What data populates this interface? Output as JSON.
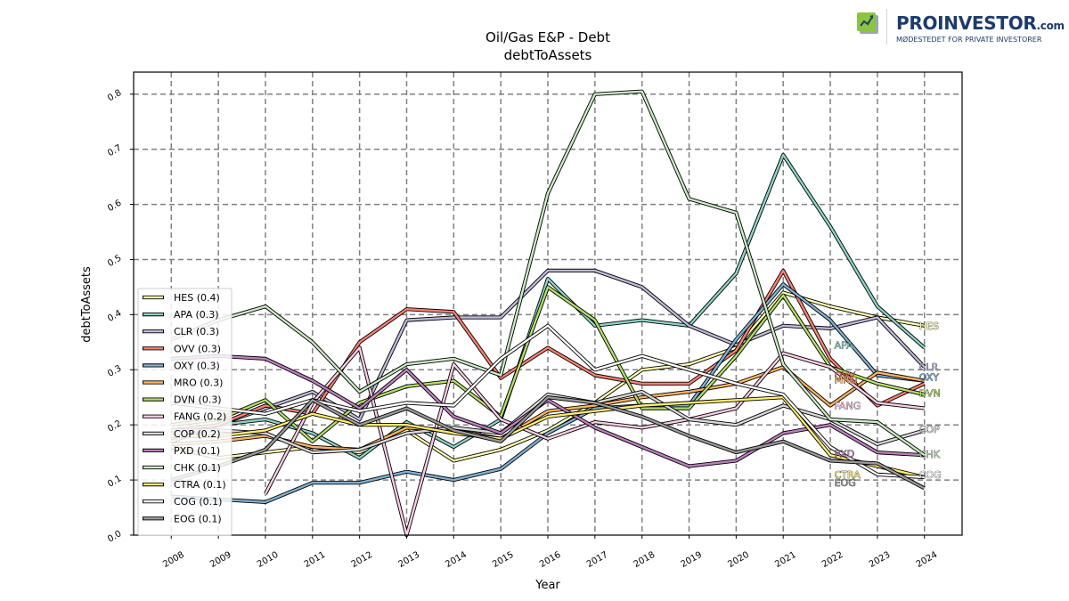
{
  "brand": {
    "name": "PROINVESTOR",
    "suffix": ".com",
    "tagline": "MØDESTEDET FOR PRIVATE INVESTORER"
  },
  "chart_data": {
    "type": "line",
    "title": "Oil/Gas E&P - Debt",
    "subtitle": "debtToAssets",
    "xlabel": "Year",
    "ylabel": "debtToAssets",
    "x": [
      2008,
      2009,
      2010,
      2011,
      2012,
      2013,
      2014,
      2015,
      2016,
      2017,
      2018,
      2019,
      2020,
      2021,
      2022,
      2023,
      2024
    ],
    "xlim": [
      2007.2,
      2024.8
    ],
    "ylim": [
      0.0,
      0.84
    ],
    "yticks": [
      "0.0",
      "0.1",
      "0.2",
      "0.3",
      "0.4",
      "0.5",
      "0.6",
      "0.7",
      "0.8"
    ],
    "grid": true,
    "legend_position": "lower-left",
    "series": [
      {
        "name": "HES (0.4)",
        "label": "HES",
        "color": "#ffffb3",
        "values": [
          0.16,
          0.14,
          0.15,
          0.16,
          0.15,
          0.19,
          0.135,
          0.155,
          0.19,
          0.24,
          0.3,
          0.31,
          0.34,
          0.44,
          0.415,
          0.395,
          0.38
        ]
      },
      {
        "name": "APA (0.3)",
        "label": "APA",
        "color": "#8dd3c7",
        "values": [
          0.17,
          0.2,
          0.21,
          0.185,
          0.14,
          0.205,
          0.16,
          0.21,
          0.465,
          0.38,
          0.39,
          0.38,
          0.475,
          0.69,
          0.56,
          0.415,
          0.34
        ]
      },
      {
        "name": "CLR (0.3)",
        "label": "CLR",
        "color": "#bebada",
        "values": [
          0.17,
          0.2,
          0.23,
          0.26,
          0.21,
          0.39,
          0.395,
          0.395,
          0.48,
          0.48,
          0.45,
          0.38,
          0.345,
          0.38,
          0.375,
          0.395,
          0.305
        ]
      },
      {
        "name": "OVV (0.3)",
        "label": "OVV",
        "color": "#fb8072",
        "values": [
          0.19,
          0.2,
          0.235,
          0.22,
          0.35,
          0.41,
          0.405,
          0.285,
          0.34,
          0.29,
          0.275,
          0.275,
          0.335,
          0.48,
          0.32,
          0.235,
          0.275
        ]
      },
      {
        "name": "OXY (0.3)",
        "label": "OXY",
        "color": "#80b1d3",
        "values": [
          0.07,
          0.065,
          0.06,
          0.095,
          0.095,
          0.115,
          0.1,
          0.12,
          0.185,
          0.23,
          0.235,
          0.235,
          0.355,
          0.455,
          0.39,
          0.29,
          0.28
        ]
      },
      {
        "name": "MRO (0.3)",
        "label": "MRO",
        "color": "#fdb462",
        "values": [
          0.165,
          0.17,
          0.18,
          0.16,
          0.155,
          0.195,
          0.19,
          0.175,
          0.225,
          0.235,
          0.25,
          0.26,
          0.275,
          0.305,
          0.235,
          0.295,
          0.28
        ]
      },
      {
        "name": "DVN (0.3)",
        "label": "DVN",
        "color": "#b3de69",
        "values": [
          0.2,
          0.21,
          0.245,
          0.17,
          0.24,
          0.27,
          0.28,
          0.215,
          0.45,
          0.39,
          0.23,
          0.23,
          0.325,
          0.435,
          0.305,
          0.275,
          0.255
        ]
      },
      {
        "name": "FANG (0.2)",
        "label": "FANG",
        "color": "#fccde5",
        "values": [
          null,
          null,
          0.075,
          0.24,
          0.34,
          0.0,
          0.31,
          0.21,
          0.175,
          0.205,
          0.195,
          0.21,
          0.23,
          0.33,
          0.305,
          0.24,
          0.23
        ]
      },
      {
        "name": "COP (0.2)",
        "label": "COP",
        "color": "#d9d9d9",
        "values": [
          0.19,
          0.19,
          0.185,
          0.15,
          0.155,
          0.185,
          0.195,
          0.185,
          0.255,
          0.24,
          0.26,
          0.21,
          0.2,
          0.235,
          0.21,
          0.165,
          0.19
        ]
      },
      {
        "name": "PXD (0.1)",
        "label": "PXD",
        "color": "#bc80bd",
        "values": [
          0.32,
          0.325,
          0.32,
          0.28,
          0.23,
          0.3,
          0.215,
          0.185,
          0.245,
          0.195,
          0.16,
          0.125,
          0.135,
          0.185,
          0.2,
          0.15,
          0.145
        ]
      },
      {
        "name": "CHK (0.1)",
        "label": "CHK",
        "color": "#ccebc5",
        "values": [
          0.355,
          0.39,
          0.415,
          0.35,
          0.26,
          0.31,
          0.32,
          0.29,
          0.62,
          0.8,
          0.805,
          0.61,
          0.585,
          0.31,
          0.21,
          0.205,
          0.145
        ]
      },
      {
        "name": "CTRA (0.1)",
        "label": "CTRA",
        "color": "#ffed6f",
        "values": [
          0.18,
          0.18,
          0.19,
          0.22,
          0.2,
          0.2,
          0.185,
          0.175,
          0.215,
          0.225,
          0.235,
          0.24,
          0.245,
          0.25,
          0.145,
          0.125,
          0.105
        ]
      },
      {
        "name": "COG (0.1)",
        "label": "COG",
        "color": "#ffffff",
        "values": [
          0.24,
          0.23,
          0.22,
          0.245,
          0.225,
          0.24,
          0.235,
          0.32,
          0.38,
          0.3,
          0.325,
          0.3,
          0.275,
          0.255,
          0.16,
          0.11,
          0.105
        ]
      },
      {
        "name": "EOG (0.1)",
        "label": "EOG",
        "color": "#999999",
        "values": [
          0.1,
          0.125,
          0.155,
          0.245,
          0.2,
          0.23,
          0.19,
          0.17,
          0.25,
          0.24,
          0.215,
          0.18,
          0.15,
          0.17,
          0.135,
          0.13,
          0.085
        ]
      }
    ],
    "end_labels": [
      {
        "text": "HES",
        "x": 2024,
        "y": 0.38
      },
      {
        "text": "APA",
        "x": 2022.2,
        "y": 0.345
      },
      {
        "text": "CLR",
        "x": 2024,
        "y": 0.305
      },
      {
        "text": "OVV",
        "x": 2022.2,
        "y": 0.29
      },
      {
        "text": "MRO",
        "x": 2022.2,
        "y": 0.282
      },
      {
        "text": "OXY",
        "x": 2024,
        "y": 0.287
      },
      {
        "text": "DVN",
        "x": 2024,
        "y": 0.258
      },
      {
        "text": "FANG",
        "x": 2022.2,
        "y": 0.235
      },
      {
        "text": "COP",
        "x": 2024,
        "y": 0.192
      },
      {
        "text": "PXD",
        "x": 2022.2,
        "y": 0.148
      },
      {
        "text": "CHK",
        "x": 2024,
        "y": 0.147
      },
      {
        "text": "CTRA",
        "x": 2022.2,
        "y": 0.11
      },
      {
        "text": "EOG",
        "x": 2022.2,
        "y": 0.095
      },
      {
        "text": "COG",
        "x": 2024,
        "y": 0.11
      }
    ]
  }
}
